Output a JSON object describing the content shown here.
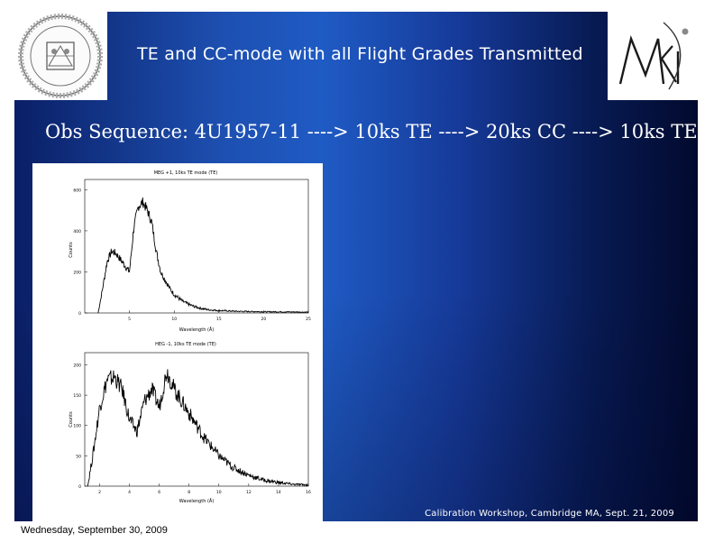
{
  "slide": {
    "title": "TE and CC-mode with all Flight Grades Transmitted",
    "subtitle": "Obs Sequence: 4U1957-11 ---->  10ks TE ----> 20ks CC ----> 10ks TE",
    "footer": "Calibration Workshop, Cambridge MA, Sept. 21, 2009"
  },
  "logos": {
    "left_icon": "mit-seal-logo",
    "right_icon": "mki-logo",
    "right_text": "MKI"
  },
  "charts": {
    "top": {
      "title": "MEG +1, 10ks TE mode (TE)",
      "ylabel": "Counts",
      "xlabel": "Wavelength (Å)",
      "x_ticks": [
        "5",
        "10",
        "15",
        "20",
        "25"
      ],
      "y_ticks": [
        "0",
        "200",
        "400",
        "600"
      ]
    },
    "bottom": {
      "title": "HEG -1, 10ks TE mode (TE)",
      "ylabel": "Counts",
      "xlabel": "Wavelength (Å)",
      "x_ticks": [
        "2",
        "4",
        "6",
        "8",
        "10",
        "12",
        "14",
        "16"
      ],
      "y_ticks": [
        "0",
        "50",
        "100",
        "150",
        "200"
      ]
    }
  },
  "chart_data": [
    {
      "type": "line",
      "title": "MEG +1, 10ks TE mode (TE)",
      "xlabel": "Wavelength (Å)",
      "ylabel": "Counts",
      "xlim": [
        0,
        25
      ],
      "ylim": [
        0,
        650
      ],
      "series": [
        {
          "x": [
            1.5,
            2,
            2.5,
            3,
            3.5,
            4,
            4.5,
            5,
            5.5,
            6,
            6.5,
            7,
            7.5,
            8,
            8.5,
            9,
            9.5,
            10,
            11,
            12,
            13,
            14,
            15,
            17,
            20,
            23,
            25
          ],
          "values": [
            0,
            120,
            250,
            300,
            290,
            260,
            230,
            200,
            420,
            520,
            540,
            500,
            440,
            300,
            200,
            160,
            120,
            90,
            55,
            35,
            22,
            15,
            12,
            8,
            6,
            5,
            4
          ]
        }
      ]
    },
    {
      "type": "line",
      "title": "HEG -1, 10ks TE mode (TE)",
      "xlabel": "Wavelength (Å)",
      "ylabel": "Counts",
      "xlim": [
        1,
        16
      ],
      "ylim": [
        0,
        220
      ],
      "series": [
        {
          "x": [
            1.2,
            1.6,
            2,
            2.5,
            3,
            3.5,
            4,
            4.5,
            5,
            5.5,
            6,
            6.5,
            7,
            7.5,
            8,
            8.5,
            9,
            10,
            11,
            12,
            13,
            14,
            15,
            16
          ],
          "values": [
            0,
            60,
            130,
            175,
            180,
            160,
            110,
            90,
            140,
            160,
            130,
            190,
            160,
            140,
            120,
            100,
            80,
            50,
            30,
            18,
            10,
            6,
            3,
            2
          ]
        }
      ]
    }
  ],
  "status": {
    "date": "Wednesday, September 30, 2009"
  }
}
